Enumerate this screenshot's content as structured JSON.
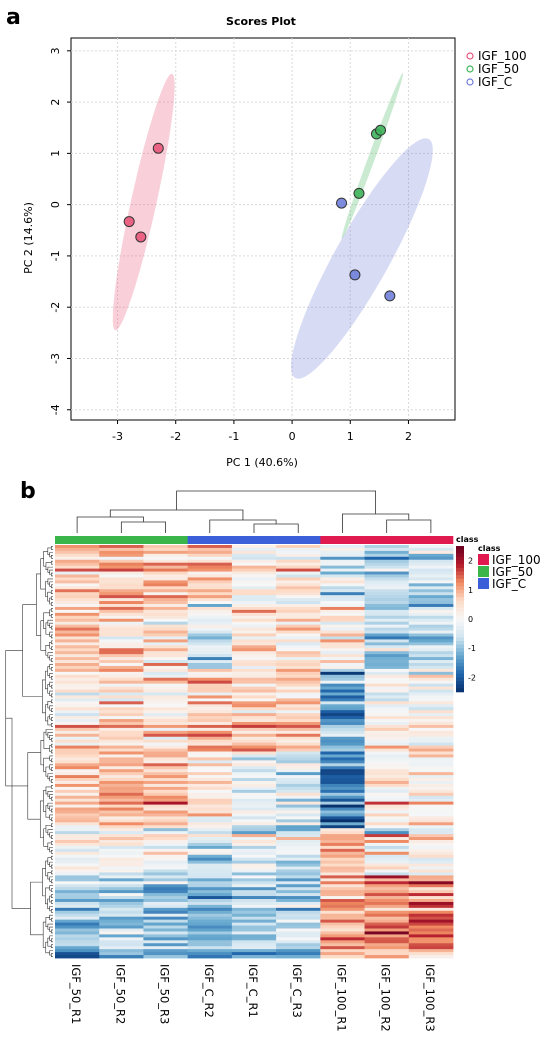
{
  "chart_data": [
    {
      "panel": "a",
      "type": "scatter",
      "title": "Scores Plot",
      "xlabel": "PC 1 (40.6%)",
      "ylabel": "PC 2 (14.6%)",
      "xlim": [
        -3.8,
        2.8
      ],
      "ylim": [
        -4.2,
        3.25
      ],
      "xticks": [
        -3,
        -2,
        -1,
        0,
        1,
        2
      ],
      "yticks": [
        -4,
        -3,
        -2,
        -1,
        0,
        1,
        2,
        3
      ],
      "grid": true,
      "legend_position": "top-right",
      "series": [
        {
          "name": "IGF_100",
          "color": "#e8557a",
          "points": [
            [
              -2.3,
              1.1
            ],
            [
              -2.8,
              -0.33
            ],
            [
              -2.6,
              -0.63
            ]
          ],
          "ellipse": {
            "cx": -2.55,
            "cy": 0.05,
            "rx": 2.55,
            "ry": 0.22,
            "angle_deg": 79
          }
        },
        {
          "name": "IGF_50",
          "color": "#3fb35a",
          "points": [
            [
              1.45,
              1.38
            ],
            [
              1.52,
              1.45
            ],
            [
              1.15,
              0.22
            ]
          ],
          "ellipse": {
            "cx": 1.38,
            "cy": 0.95,
            "rx": 1.7,
            "ry": 0.06,
            "angle_deg": 72
          }
        },
        {
          "name": "IGF_C",
          "color": "#6f7fd9",
          "points": [
            [
              0.85,
              0.03
            ],
            [
              1.08,
              -1.37
            ],
            [
              1.68,
              -1.78
            ]
          ],
          "ellipse": {
            "cx": 1.2,
            "cy": -1.05,
            "rx": 2.6,
            "ry": 0.48,
            "angle_deg": 64
          }
        }
      ]
    },
    {
      "panel": "b",
      "type": "heatmap",
      "columns": [
        "IGF_50_R1",
        "IGF_50_R2",
        "IGF_50_R3",
        "IGF_C_R2",
        "IGF_C_R1",
        "IGF_C_R3",
        "IGF_100_R1",
        "IGF_100_R2",
        "IGF_100_R3"
      ],
      "column_classes": [
        "IGF_50",
        "IGF_50",
        "IGF_50",
        "IGF_C",
        "IGF_C",
        "IGF_C",
        "IGF_100",
        "IGF_100",
        "IGF_100"
      ],
      "class_colors": {
        "IGF_100": "#e0194e",
        "IGF_50": "#39b54a",
        "IGF_C": "#3b5fd9"
      },
      "legend_title": "class",
      "legend_entries": [
        "IGF_100",
        "IGF_50",
        "IGF_C"
      ],
      "colorbar_title": "class",
      "colorbar_range": [
        -2.5,
        2.5
      ],
      "colorbar_ticks": [
        2,
        1,
        0,
        -1,
        -2
      ],
      "colormap": [
        "#08306b",
        "#2166ac",
        "#67a9cf",
        "#d1e5f0",
        "#f7f7f7",
        "#fddbc7",
        "#ef8a62",
        "#b2182b",
        "#67001f"
      ]
    }
  ]
}
